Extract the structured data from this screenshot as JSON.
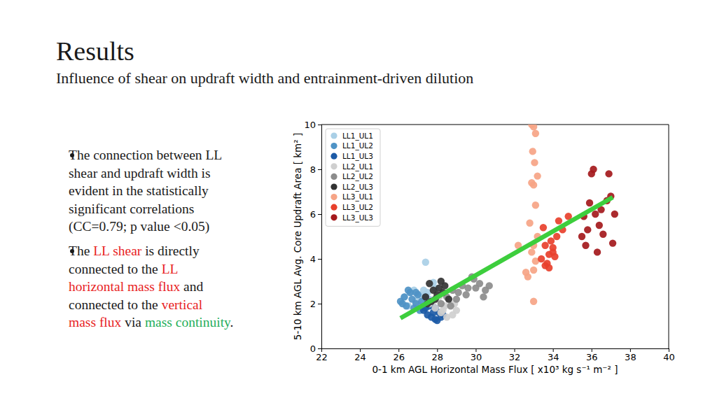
{
  "slide": {
    "title": "Results",
    "subtitle": "Influence of shear on updraft width and entrainment-driven dilution",
    "bullets": [
      {
        "lines": [
          [
            {
              "text": "The connection between LL"
            }
          ],
          [
            {
              "text": "shear and updraft width is"
            }
          ],
          [
            {
              "text": "evident in the statistically"
            }
          ],
          [
            {
              "text": "significant correlations"
            }
          ],
          [
            {
              "text": "(CC=0.79; p value <0.05)"
            }
          ]
        ]
      },
      {
        "lines": [
          [
            {
              "text": "The "
            },
            {
              "text": "LL shear",
              "color": "#e8231f"
            },
            {
              "text": " is directly"
            }
          ],
          [
            {
              "text": "connected to the "
            },
            {
              "text": "LL",
              "color": "#e8231f"
            }
          ],
          [
            {
              "text": "horizontal mass flux",
              "color": "#e8231f"
            },
            {
              "text": " and"
            }
          ],
          [
            {
              "text": "connected to the "
            },
            {
              "text": "vertical",
              "color": "#e8231f"
            }
          ],
          [
            {
              "text": "mass flux",
              "color": "#e8231f"
            },
            {
              "text": " via "
            },
            {
              "text": "mass continuity",
              "color": "#1fae5b"
            },
            {
              "text": "."
            }
          ]
        ]
      }
    ]
  },
  "chart_data": {
    "type": "scatter",
    "x_label": "0-1 km AGL Horizontal Mass Flux [ x10³ kg s⁻¹ m⁻² ]",
    "y_label": "5-10 km AGL Avg. Core Updraft Area [ km² ]",
    "xlim": [
      22,
      40
    ],
    "xticks": [
      22,
      24,
      26,
      28,
      30,
      32,
      34,
      36,
      38,
      40
    ],
    "ylim": [
      0,
      10
    ],
    "yticks": [
      0,
      2,
      4,
      6,
      8,
      10
    ],
    "grid": false,
    "legend": "upper left",
    "series": [
      {
        "name": "LL1_UL1",
        "color": "#a9cfe6",
        "x": [
          26.3,
          26.6,
          26.9,
          27.1,
          27.3,
          27.4,
          27.6,
          27.8,
          27.0,
          26.8,
          27.2,
          26.5,
          27.5,
          27.9,
          27.4
        ],
        "values": [
          2.3,
          2.5,
          2.1,
          2.4,
          2.6,
          3.85,
          2.2,
          2.95,
          2.0,
          2.6,
          2.3,
          1.9,
          2.5,
          2.7,
          2.4
        ]
      },
      {
        "name": "LL1_UL2",
        "color": "#4f93c6",
        "x": [
          26.1,
          26.3,
          26.4,
          26.6,
          26.7,
          26.9,
          27.0,
          27.2,
          26.5,
          26.8,
          27.4,
          27.6,
          26.2,
          27.1,
          26.9
        ],
        "values": [
          2.1,
          2.3,
          1.9,
          2.5,
          2.2,
          2.0,
          2.4,
          2.1,
          2.6,
          1.8,
          2.3,
          2.0,
          2.0,
          1.7,
          2.5
        ]
      },
      {
        "name": "LL1_UL3",
        "color": "#1c5aa6",
        "x": [
          27.3,
          27.5,
          27.7,
          27.9,
          28.1,
          28.2,
          27.6,
          27.8,
          28.0,
          27.4,
          28.3,
          27.9
        ],
        "values": [
          1.7,
          1.5,
          1.4,
          1.3,
          1.6,
          1.4,
          1.9,
          1.6,
          1.25,
          1.8,
          1.5,
          1.8
        ]
      },
      {
        "name": "LL2_UL1",
        "color": "#cfcfcf",
        "x": [
          27.6,
          27.9,
          28.2,
          28.4,
          28.6,
          28.8,
          29.0,
          28.1,
          28.5,
          27.8,
          28.9,
          28.3
        ],
        "values": [
          2.0,
          1.8,
          1.6,
          1.9,
          2.2,
          1.5,
          1.7,
          2.3,
          1.4,
          2.1,
          2.0,
          1.7
        ]
      },
      {
        "name": "LL2_UL2",
        "color": "#8c8c8c",
        "x": [
          28.2,
          28.5,
          28.8,
          29.1,
          29.3,
          29.6,
          29.9,
          30.2,
          30.5,
          30.7,
          29.0,
          29.8,
          30.4,
          28.7,
          29.5,
          30.0
        ],
        "values": [
          2.0,
          2.3,
          2.6,
          2.5,
          2.8,
          2.7,
          3.1,
          2.9,
          2.6,
          2.8,
          2.2,
          3.2,
          2.3,
          1.9,
          2.4,
          2.7
        ]
      },
      {
        "name": "LL2_UL3",
        "color": "#333333",
        "x": [
          27.4,
          27.6,
          27.8,
          28.0,
          28.2,
          28.4,
          28.6,
          27.7,
          28.1,
          27.5,
          28.3,
          27.9
        ],
        "values": [
          2.3,
          2.9,
          2.6,
          2.4,
          3.0,
          2.8,
          2.2,
          2.1,
          2.7,
          2.0,
          2.5,
          2.2
        ]
      },
      {
        "name": "LL3_UL1",
        "color": "#f6a486",
        "x": [
          32.9,
          33.0,
          33.1,
          32.95,
          33.05,
          33.2,
          32.9,
          33.0,
          33.1,
          32.8,
          33.2,
          33.0,
          32.9,
          33.1,
          33.0,
          32.2,
          32.6,
          33.0,
          32.7
        ],
        "values": [
          10.0,
          9.9,
          9.6,
          8.8,
          8.3,
          7.7,
          7.4,
          7.3,
          6.4,
          5.6,
          5.0,
          4.6,
          4.3,
          3.9,
          3.5,
          4.6,
          3.4,
          2.1,
          3.2
        ]
      },
      {
        "name": "LL3_UL2",
        "color": "#e8402c",
        "x": [
          33.4,
          33.6,
          33.8,
          34.0,
          34.2,
          34.5,
          34.8,
          33.7,
          33.9,
          34.1,
          33.5,
          34.3,
          33.8,
          34.0,
          33.6
        ],
        "values": [
          4.0,
          3.7,
          4.2,
          4.5,
          5.0,
          5.3,
          5.9,
          3.8,
          4.8,
          4.1,
          5.4,
          5.7,
          3.6,
          4.3,
          4.6
        ]
      },
      {
        "name": "LL3_UL3",
        "color": "#a4191c",
        "x": [
          35.5,
          35.7,
          35.9,
          36.0,
          36.2,
          36.4,
          36.6,
          36.9,
          37.0,
          37.2,
          36.1,
          35.8,
          36.5,
          37.1,
          36.3,
          35.6,
          36.8
        ],
        "values": [
          5.0,
          4.6,
          6.5,
          7.8,
          6.0,
          5.5,
          5.1,
          7.8,
          6.8,
          6.0,
          8.0,
          5.3,
          6.2,
          4.7,
          4.3,
          5.9,
          6.6
        ]
      }
    ],
    "trend_line": {
      "x": [
        26.1,
        37.1
      ],
      "values": [
        1.35,
        6.75
      ],
      "color": "#3dce3d"
    }
  }
}
